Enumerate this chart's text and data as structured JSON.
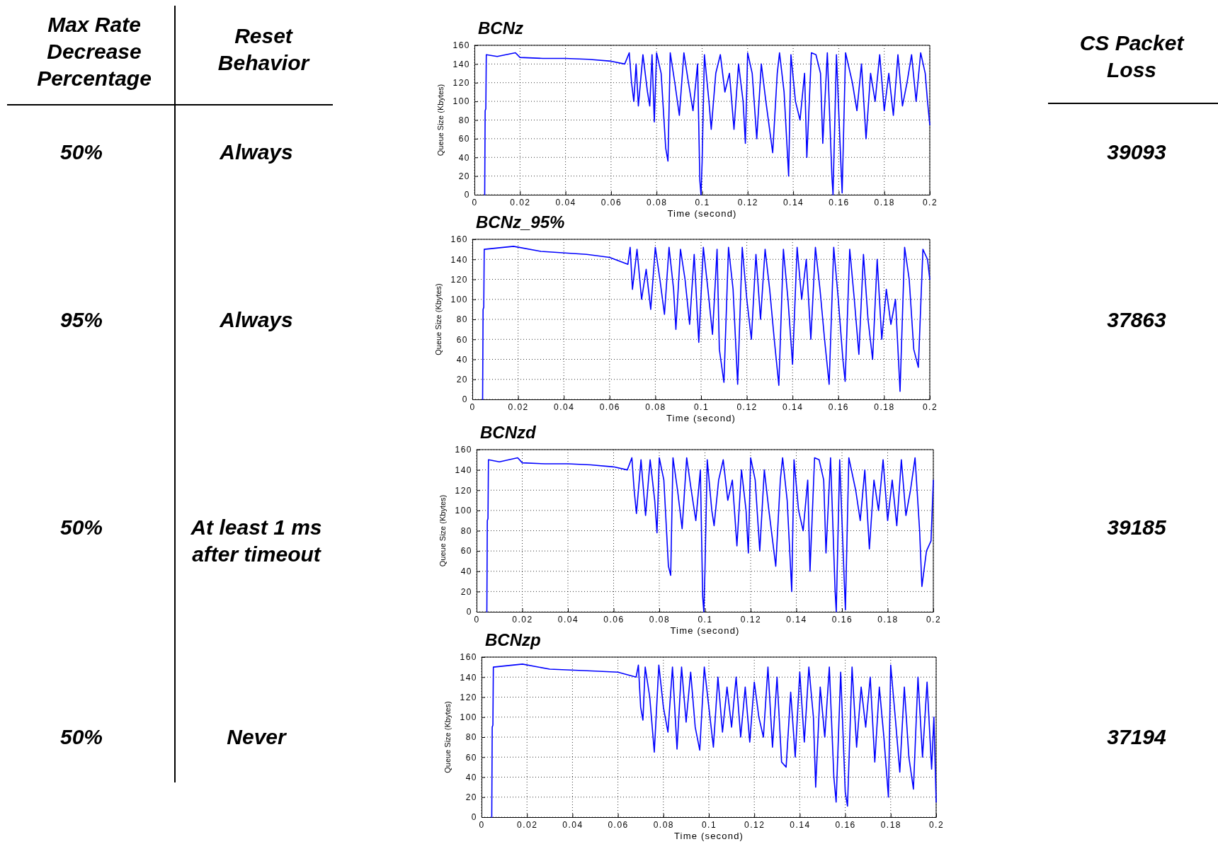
{
  "chart_data": [
    {
      "type": "other",
      "annotations": [
        "Max Rate Decrease Percentage",
        "Reset Behavior",
        "CS Packet Loss",
        "50%",
        "Always",
        "39093",
        "95%",
        "Always",
        "37863",
        "50%",
        "At least 1 ms after timeout",
        "39185",
        "50%",
        "Never",
        "37194"
      ]
    },
    {
      "type": "line",
      "title": "BCNz",
      "xlabel": "Time (second)",
      "ylabel": "Queue Size (Kbytes)",
      "xlim": [
        0,
        0.2
      ],
      "ylim": [
        0,
        160
      ],
      "xticks": [
        0,
        0.02,
        0.04,
        0.06,
        0.08,
        0.1,
        0.12,
        0.14,
        0.16,
        0.18,
        0.2
      ],
      "yticks": [
        0,
        20,
        40,
        60,
        80,
        100,
        120,
        140,
        160
      ],
      "grid": true,
      "series": [
        {
          "color": "#0000ff",
          "x": [
            0.0045,
            0.0047,
            0.005,
            0.0052,
            0.01,
            0.018,
            0.02,
            0.03,
            0.04,
            0.05,
            0.06,
            0.066,
            0.068,
            0.069,
            0.07,
            0.071,
            0.072,
            0.074,
            0.076,
            0.077,
            0.078,
            0.079,
            0.08,
            0.082,
            0.084,
            0.085,
            0.086,
            0.088,
            0.09,
            0.092,
            0.094,
            0.096,
            0.098,
            0.099,
            0.0995,
            0.1,
            0.101,
            0.103,
            0.104,
            0.106,
            0.108,
            0.11,
            0.112,
            0.114,
            0.116,
            0.118,
            0.119,
            0.12,
            0.122,
            0.124,
            0.126,
            0.128,
            0.131,
            0.133,
            0.134,
            0.136,
            0.138,
            0.139,
            0.141,
            0.143,
            0.145,
            0.146,
            0.148,
            0.15,
            0.152,
            0.153,
            0.155,
            0.157,
            0.1575,
            0.159,
            0.161,
            0.1615,
            0.163,
            0.166,
            0.168,
            0.17,
            0.172,
            0.174,
            0.176,
            0.178,
            0.18,
            0.182,
            0.184,
            0.186,
            0.188,
            0.19,
            0.192,
            0.194,
            0.196,
            0.198,
            0.199,
            0.2
          ],
          "values": [
            0,
            90,
            92,
            150,
            148,
            152,
            147,
            146,
            146,
            145,
            143,
            140,
            152,
            120,
            100,
            140,
            95,
            150,
            110,
            95,
            150,
            78,
            152,
            130,
            50,
            36,
            152,
            120,
            85,
            152,
            120,
            90,
            140,
            15,
            0,
            35,
            150,
            100,
            70,
            130,
            150,
            110,
            130,
            70,
            140,
            100,
            55,
            152,
            130,
            60,
            140,
            100,
            45,
            130,
            152,
            110,
            20,
            150,
            100,
            80,
            130,
            40,
            152,
            150,
            130,
            55,
            152,
            20,
            0,
            150,
            30,
            2,
            152,
            120,
            90,
            140,
            60,
            130,
            100,
            150,
            90,
            130,
            85,
            150,
            95,
            120,
            150,
            100,
            152,
            130,
            100,
            75
          ]
        }
      ]
    },
    {
      "type": "line",
      "title": "BCNz_95%",
      "xlabel": "Time (second)",
      "ylabel": "Queue Size (Kbytes)",
      "xlim": [
        0,
        0.2
      ],
      "ylim": [
        0,
        160
      ],
      "xticks": [
        0,
        0.02,
        0.04,
        0.06,
        0.08,
        0.1,
        0.12,
        0.14,
        0.16,
        0.18,
        0.2
      ],
      "yticks": [
        0,
        20,
        40,
        60,
        80,
        100,
        120,
        140,
        160
      ],
      "grid": true,
      "series": [
        {
          "color": "#0000ff",
          "x": [
            0.0045,
            0.0047,
            0.005,
            0.0052,
            0.018,
            0.03,
            0.05,
            0.06,
            0.068,
            0.069,
            0.07,
            0.072,
            0.074,
            0.076,
            0.078,
            0.08,
            0.082,
            0.084,
            0.086,
            0.088,
            0.089,
            0.091,
            0.093,
            0.095,
            0.097,
            0.099,
            0.101,
            0.103,
            0.105,
            0.107,
            0.108,
            0.11,
            0.112,
            0.114,
            0.116,
            0.118,
            0.12,
            0.122,
            0.124,
            0.126,
            0.128,
            0.13,
            0.132,
            0.134,
            0.136,
            0.138,
            0.14,
            0.142,
            0.144,
            0.146,
            0.148,
            0.15,
            0.152,
            0.154,
            0.156,
            0.158,
            0.16,
            0.162,
            0.163,
            0.165,
            0.167,
            0.169,
            0.171,
            0.173,
            0.175,
            0.177,
            0.179,
            0.181,
            0.183,
            0.185,
            0.187,
            0.189,
            0.191,
            0.193,
            0.195,
            0.197,
            0.199,
            0.2
          ],
          "values": [
            0,
            90,
            92,
            150,
            153,
            148,
            145,
            142,
            135,
            152,
            110,
            150,
            100,
            130,
            90,
            152,
            120,
            85,
            152,
            110,
            70,
            150,
            120,
            75,
            145,
            57,
            152,
            110,
            65,
            150,
            50,
            17,
            152,
            110,
            15,
            152,
            100,
            60,
            145,
            80,
            150,
            110,
            60,
            14,
            150,
            100,
            35,
            152,
            100,
            140,
            60,
            152,
            110,
            60,
            15,
            152,
            100,
            40,
            18,
            150,
            100,
            45,
            145,
            80,
            40,
            140,
            60,
            110,
            75,
            100,
            8,
            152,
            120,
            50,
            32,
            150,
            140,
            120
          ]
        }
      ]
    },
    {
      "type": "line",
      "title": "BCNzd",
      "xlabel": "Time (second)",
      "ylabel": "Queue Size (Kbytes)",
      "xlim": [
        0,
        0.2
      ],
      "ylim": [
        0,
        160
      ],
      "xticks": [
        0,
        0.02,
        0.04,
        0.06,
        0.08,
        0.1,
        0.12,
        0.14,
        0.16,
        0.18,
        0.2
      ],
      "yticks": [
        0,
        20,
        40,
        60,
        80,
        100,
        120,
        140,
        160
      ],
      "grid": true,
      "series": [
        {
          "color": "#0000ff",
          "x": [
            0.0045,
            0.0047,
            0.005,
            0.0052,
            0.01,
            0.018,
            0.02,
            0.03,
            0.04,
            0.05,
            0.06,
            0.066,
            0.068,
            0.069,
            0.07,
            0.072,
            0.074,
            0.076,
            0.078,
            0.079,
            0.08,
            0.082,
            0.084,
            0.085,
            0.086,
            0.088,
            0.09,
            0.092,
            0.094,
            0.096,
            0.098,
            0.099,
            0.0995,
            0.1,
            0.101,
            0.103,
            0.104,
            0.106,
            0.108,
            0.11,
            0.112,
            0.114,
            0.116,
            0.118,
            0.119,
            0.12,
            0.122,
            0.124,
            0.126,
            0.128,
            0.131,
            0.133,
            0.134,
            0.136,
            0.138,
            0.139,
            0.141,
            0.143,
            0.145,
            0.146,
            0.148,
            0.15,
            0.152,
            0.153,
            0.155,
            0.157,
            0.1575,
            0.159,
            0.161,
            0.1615,
            0.163,
            0.166,
            0.168,
            0.17,
            0.172,
            0.174,
            0.176,
            0.178,
            0.18,
            0.182,
            0.184,
            0.186,
            0.188,
            0.19,
            0.192,
            0.194,
            0.195,
            0.197,
            0.199,
            0.2
          ],
          "values": [
            0,
            90,
            92,
            150,
            148,
            152,
            147,
            146,
            146,
            145,
            143,
            140,
            152,
            120,
            97,
            150,
            95,
            150,
            110,
            78,
            152,
            130,
            45,
            36,
            152,
            120,
            82,
            152,
            120,
            90,
            140,
            15,
            0,
            40,
            150,
            100,
            85,
            130,
            150,
            110,
            130,
            65,
            140,
            100,
            58,
            152,
            130,
            60,
            140,
            100,
            45,
            130,
            152,
            110,
            20,
            150,
            100,
            80,
            130,
            40,
            152,
            150,
            130,
            58,
            152,
            20,
            0,
            150,
            30,
            2,
            152,
            120,
            90,
            140,
            62,
            130,
            100,
            150,
            90,
            130,
            85,
            150,
            95,
            120,
            152,
            80,
            25,
            60,
            70,
            130
          ]
        }
      ]
    },
    {
      "type": "line",
      "title": "BCNzp",
      "xlabel": "Time (second)",
      "ylabel": "Queue Size (Kbytes)",
      "xlim": [
        0,
        0.2
      ],
      "ylim": [
        0,
        160
      ],
      "xticks": [
        0,
        0.02,
        0.04,
        0.06,
        0.08,
        0.1,
        0.12,
        0.14,
        0.16,
        0.18,
        0.2
      ],
      "yticks": [
        0,
        20,
        40,
        60,
        80,
        100,
        120,
        140,
        160
      ],
      "grid": true,
      "series": [
        {
          "color": "#0000ff",
          "x": [
            0.0045,
            0.0047,
            0.005,
            0.0052,
            0.018,
            0.03,
            0.05,
            0.06,
            0.068,
            0.069,
            0.07,
            0.071,
            0.072,
            0.074,
            0.076,
            0.078,
            0.08,
            0.082,
            0.084,
            0.086,
            0.088,
            0.09,
            0.092,
            0.094,
            0.096,
            0.098,
            0.1,
            0.102,
            0.104,
            0.106,
            0.108,
            0.11,
            0.112,
            0.114,
            0.116,
            0.118,
            0.12,
            0.122,
            0.124,
            0.126,
            0.128,
            0.13,
            0.132,
            0.134,
            0.136,
            0.138,
            0.14,
            0.142,
            0.144,
            0.146,
            0.147,
            0.149,
            0.151,
            0.153,
            0.155,
            0.156,
            0.158,
            0.16,
            0.161,
            0.163,
            0.165,
            0.167,
            0.169,
            0.171,
            0.173,
            0.175,
            0.177,
            0.179,
            0.18,
            0.182,
            0.184,
            0.186,
            0.188,
            0.19,
            0.192,
            0.194,
            0.196,
            0.198,
            0.199,
            0.2
          ],
          "values": [
            0,
            90,
            92,
            150,
            153,
            148,
            146,
            145,
            140,
            152,
            110,
            97,
            150,
            120,
            65,
            152,
            110,
            85,
            150,
            68,
            150,
            95,
            145,
            90,
            67,
            150,
            110,
            70,
            140,
            85,
            130,
            90,
            140,
            80,
            130,
            75,
            135,
            100,
            80,
            150,
            70,
            140,
            55,
            50,
            125,
            60,
            145,
            75,
            150,
            100,
            30,
            130,
            80,
            150,
            40,
            15,
            145,
            25,
            11,
            150,
            70,
            130,
            90,
            140,
            55,
            130,
            80,
            20,
            152,
            100,
            45,
            130,
            60,
            28,
            140,
            60,
            135,
            48,
            100,
            15
          ]
        }
      ]
    }
  ]
}
